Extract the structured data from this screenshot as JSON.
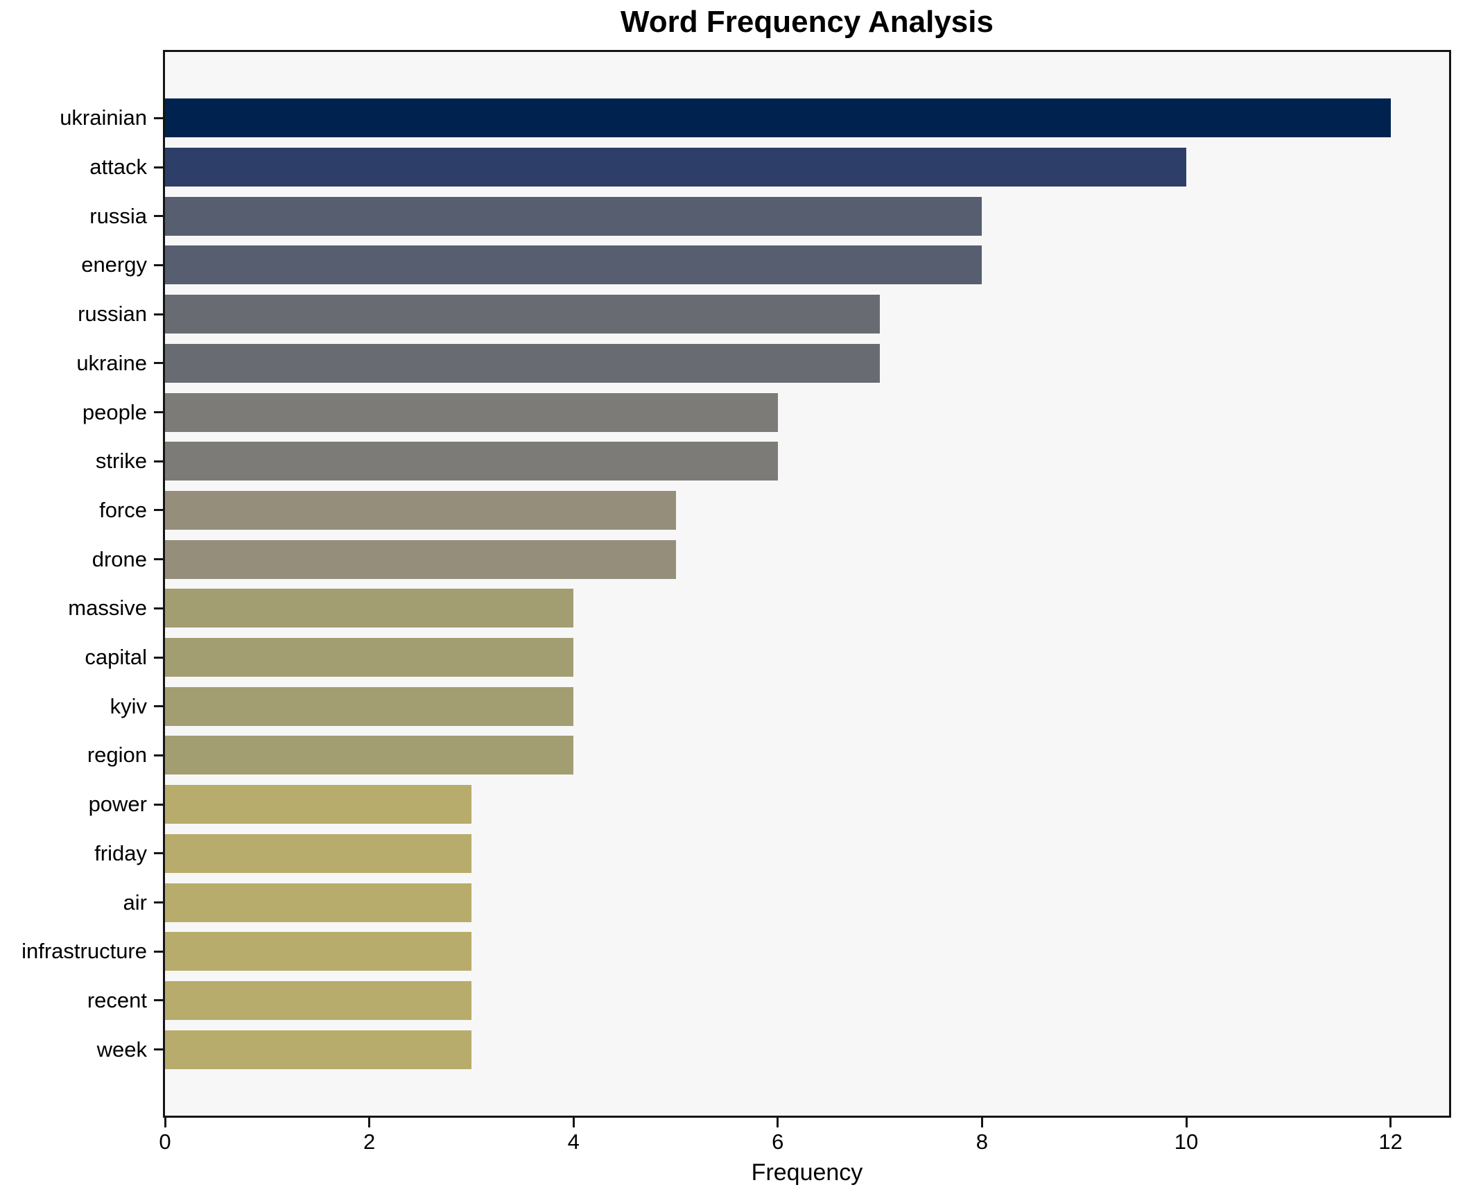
{
  "chart_data": {
    "type": "bar",
    "orientation": "horizontal",
    "title": "Word Frequency Analysis",
    "xlabel": "Frequency",
    "ylabel": "",
    "categories": [
      "ukrainian",
      "attack",
      "russia",
      "energy",
      "russian",
      "ukraine",
      "people",
      "strike",
      "force",
      "drone",
      "massive",
      "capital",
      "kyiv",
      "region",
      "power",
      "friday",
      "air",
      "infrastructure",
      "recent",
      "week"
    ],
    "values": [
      12,
      10,
      8,
      8,
      7,
      7,
      6,
      6,
      5,
      5,
      4,
      4,
      4,
      4,
      3,
      3,
      3,
      3,
      3,
      3
    ],
    "bar_colors": [
      "#00224f",
      "#2d3f69",
      "#575e70",
      "#575e70",
      "#696b72",
      "#696b72",
      "#7c7b78",
      "#7c7b78",
      "#948e7b",
      "#948e7b",
      "#a39d72",
      "#a39d72",
      "#a39d72",
      "#a39d72",
      "#b8ac6c",
      "#b8ac6c",
      "#b8ac6c",
      "#b8ac6c",
      "#b8ac6c",
      "#b8ac6c"
    ],
    "x_ticks": [
      0,
      2,
      4,
      6,
      8,
      10,
      12
    ],
    "xlim": [
      0,
      12.57
    ],
    "grid": false,
    "legend": null,
    "plot_background": "#f7f7f8",
    "figure_background": "#ffffff",
    "spine_color": "#151515",
    "text_color": "#000000"
  }
}
